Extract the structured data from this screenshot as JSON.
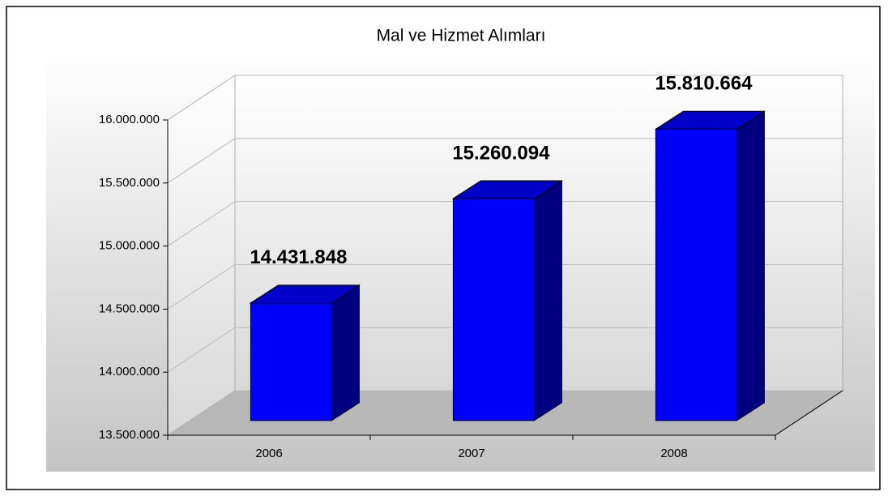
{
  "chart_data": {
    "type": "bar3d",
    "title": "Mal ve Hizmet Alımları",
    "categories": [
      "2006",
      "2007",
      "2008"
    ],
    "values": [
      14431848,
      15260094,
      15810664
    ],
    "value_labels": [
      "14.431.848",
      "15.260.094",
      "15.810.664"
    ],
    "color": "#0000ff",
    "ylim": [
      13500000,
      16000000
    ],
    "yticks": [
      {
        "value": 13500000,
        "label": "13.500.000"
      },
      {
        "value": 14000000,
        "label": "14.000.000"
      },
      {
        "value": 14500000,
        "label": "14.500.000"
      },
      {
        "value": 15000000,
        "label": "15.000.000"
      },
      {
        "value": 15500000,
        "label": "15.500.000"
      },
      {
        "value": 16000000,
        "label": "16.000.000"
      }
    ],
    "grid": true
  }
}
